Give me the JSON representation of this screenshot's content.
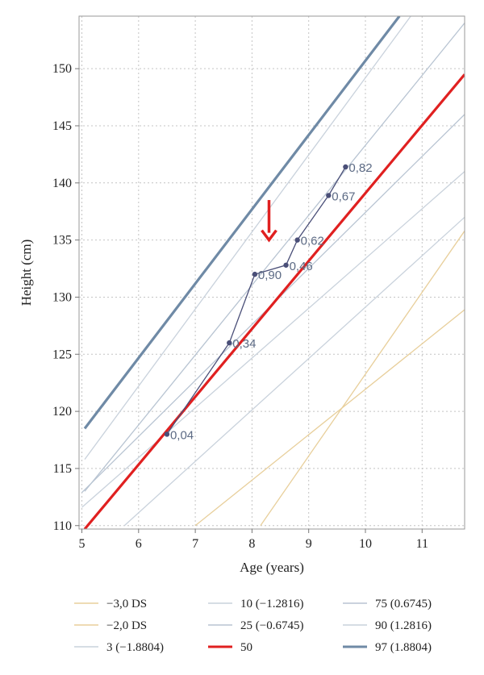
{
  "chart_data": {
    "type": "line",
    "xlabel": "Age (years)",
    "ylabel": "Height (cm)",
    "xlim": [
      4.95,
      11.75
    ],
    "ylim": [
      109.7,
      154.6
    ],
    "x_ticks": [
      5,
      6,
      7,
      8,
      9,
      10,
      11
    ],
    "y_ticks": [
      110,
      115,
      120,
      125,
      130,
      135,
      140,
      145,
      150
    ],
    "grid": true,
    "legend_position": "bottom",
    "series": [
      {
        "name": "−3,0 DS",
        "color": "#e8cf9b",
        "width": 1.3,
        "x": [
          7.0,
          11.75
        ],
        "y": [
          110.0,
          128.9
        ]
      },
      {
        "name": "−2,0 DS",
        "color": "#e8cf9b",
        "width": 1.3,
        "x": [
          8.15,
          11.75
        ],
        "y": [
          110.0,
          135.8
        ]
      },
      {
        "name": "3 (−1.8804)",
        "color": "#c9d2dc",
        "width": 1.3,
        "x": [
          5.75,
          11.75
        ],
        "y": [
          110.0,
          137.0
        ]
      },
      {
        "name": "10 (−1.2816)",
        "color": "#c9d2dc",
        "width": 1.3,
        "x": [
          5.0,
          11.75
        ],
        "y": [
          111.6,
          141.0
        ]
      },
      {
        "name": "25 (−0.6745)",
        "color": "#b8c4d2",
        "width": 1.3,
        "x": [
          5.0,
          11.75
        ],
        "y": [
          112.9,
          146.0
        ]
      },
      {
        "name": "50",
        "color": "#e02020",
        "width": 3.2,
        "x": [
          5.05,
          11.75
        ],
        "y": [
          109.7,
          149.5
        ]
      },
      {
        "name": "75 (0.6745)",
        "color": "#b8c4d2",
        "width": 1.3,
        "x": [
          5.05,
          11.75
        ],
        "y": [
          113.0,
          154.0
        ]
      },
      {
        "name": "90 (1.2816)",
        "color": "#c9d2dc",
        "width": 1.3,
        "x": [
          5.05,
          10.8
        ],
        "y": [
          115.8,
          154.6
        ]
      },
      {
        "name": "97 (1.8804)",
        "color": "#6f8aa6",
        "width": 3.2,
        "x": [
          5.05,
          10.6
        ],
        "y": [
          118.5,
          154.6
        ]
      }
    ],
    "patient": {
      "color": "#4a4f78",
      "x": [
        6.5,
        7.6,
        8.05,
        8.6,
        8.8,
        9.35,
        9.65
      ],
      "y": [
        118.0,
        126.0,
        132.0,
        132.8,
        135.0,
        138.9,
        141.4
      ],
      "labels": [
        "0,04",
        "0,34",
        "0,90",
        "0,46",
        "0,62",
        "0,67",
        "0,82"
      ]
    },
    "annotation_arrow": {
      "x": 8.3,
      "y_top": 138.5,
      "y_bottom": 135.0,
      "color": "#e02020"
    }
  },
  "legend": {
    "items": [
      {
        "label": "−3,0 DS",
        "color": "#e8cf9b"
      },
      {
        "label": "−2,0 DS",
        "color": "#e8cf9b"
      },
      {
        "label": "3 (−1.8804)",
        "color": "#c9d2dc"
      },
      {
        "label": "10 (−1.2816)",
        "color": "#c9d2dc"
      },
      {
        "label": "25 (−0.6745)",
        "color": "#b8c4d2"
      },
      {
        "label": "50",
        "color": "#e02020"
      },
      {
        "label": "75 (0.6745)",
        "color": "#b8c4d2"
      },
      {
        "label": "90 (1.2816)",
        "color": "#c9d2dc"
      },
      {
        "label": "97 (1.8804)",
        "color": "#6f8aa6"
      }
    ]
  }
}
